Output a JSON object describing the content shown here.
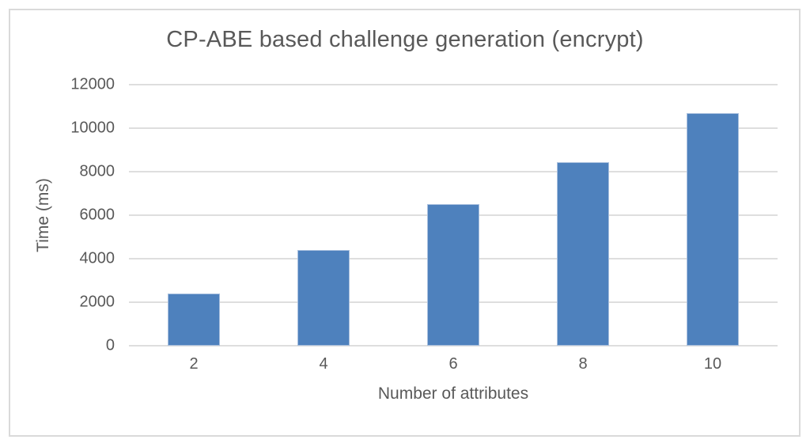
{
  "chart_data": {
    "type": "bar",
    "title": "CP-ABE based challenge generation (encrypt)",
    "categories": [
      "2",
      "4",
      "6",
      "8",
      "10"
    ],
    "values": [
      2400,
      4400,
      6500,
      8450,
      10700
    ],
    "xlabel": "Number of attributes",
    "ylabel": "Time (ms)",
    "ylim": [
      0,
      12000
    ],
    "yticks": [
      0,
      2000,
      4000,
      6000,
      8000,
      10000,
      12000
    ],
    "grid": true,
    "legend": "none",
    "bar_color": "#4e81bd",
    "bar_border_color": "#a9c0de",
    "gridline_color": "#dedede",
    "text_color": "#595959",
    "frame_color": "#dadada",
    "background_color": "#ffffff"
  }
}
